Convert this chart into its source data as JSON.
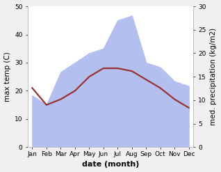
{
  "months": [
    "Jan",
    "Feb",
    "Mar",
    "Apr",
    "May",
    "Jun",
    "Jul",
    "Aug",
    "Sep",
    "Oct",
    "Nov",
    "Dec"
  ],
  "temperature": [
    21,
    15,
    17,
    20,
    25,
    28,
    28,
    27,
    24,
    21,
    17,
    14
  ],
  "precipitation": [
    11,
    9,
    16,
    18,
    20,
    21,
    27,
    28,
    18,
    17,
    14,
    13
  ],
  "temp_color": "#993333",
  "precip_color": "#b3bfee",
  "left_ylim": [
    0,
    50
  ],
  "right_ylim": [
    0,
    30
  ],
  "left_yticks": [
    0,
    10,
    20,
    30,
    40,
    50
  ],
  "right_yticks": [
    0,
    5,
    10,
    15,
    20,
    25,
    30
  ],
  "ylabel_left": "max temp (C)",
  "ylabel_right": "med. precipitation (kg/m2)",
  "xlabel": "date (month)",
  "bg_color": "#f0f0f0",
  "plot_bg_color": "#ffffff",
  "label_fontsize": 7.5,
  "tick_fontsize": 6.5,
  "xlabel_fontsize": 8,
  "line_width": 1.6
}
